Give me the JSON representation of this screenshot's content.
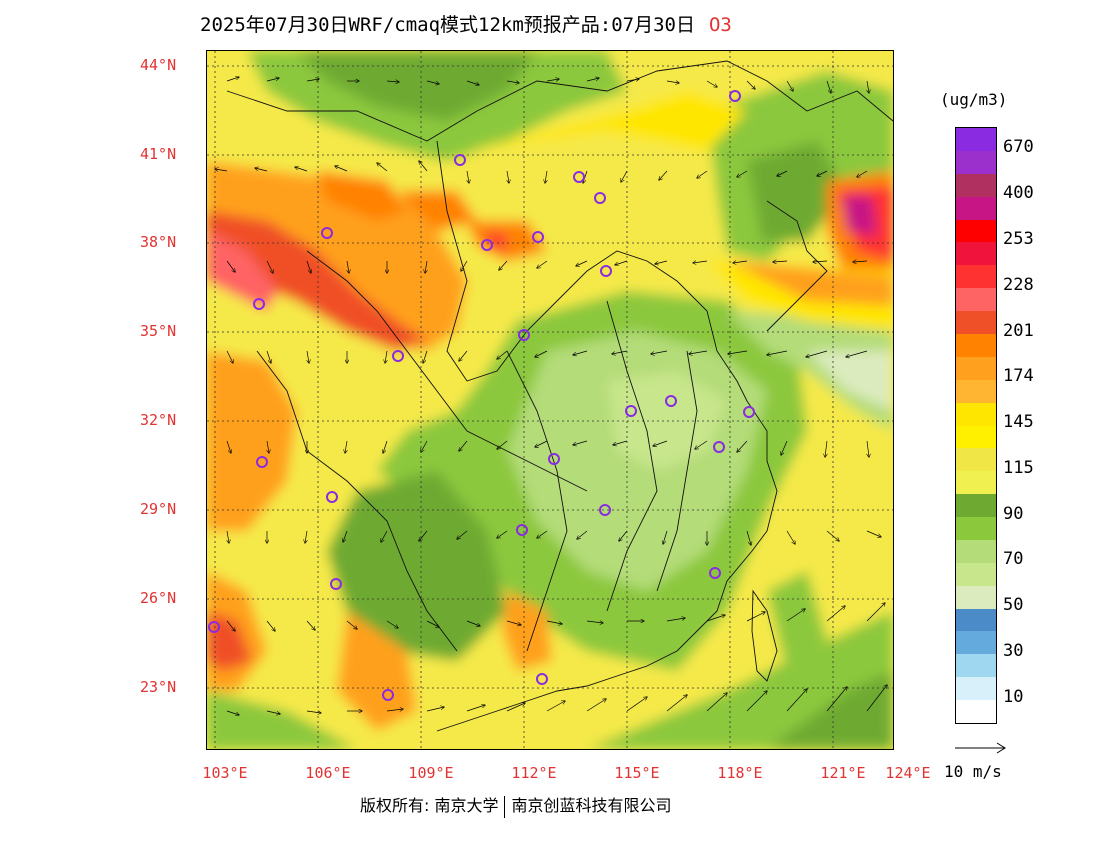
{
  "title": "2025年07月30日WRF/cmaq模式12km预报产品:07月30日",
  "pollutant": "O3",
  "unit": "(ug/m3)",
  "latitude_labels": [
    "44°N",
    "41°N",
    "38°N",
    "35°N",
    "32°N",
    "29°N",
    "26°N",
    "23°N"
  ],
  "longitude_labels": [
    "103°E",
    "106°E",
    "109°E",
    "112°E",
    "115°E",
    "118°E",
    "121°E",
    "124°E"
  ],
  "legend": {
    "levels": [
      {
        "label": "670",
        "color": "#8a2be2"
      },
      {
        "label": "",
        "color": "#9b30cc"
      },
      {
        "label": "400",
        "color": "#b03060"
      },
      {
        "label": "",
        "color": "#c71585"
      },
      {
        "label": "253",
        "color": "#ff0000"
      },
      {
        "label": "",
        "color": "#f0143c"
      },
      {
        "label": "228",
        "color": "#ff3232"
      },
      {
        "label": "",
        "color": "#ff6464"
      },
      {
        "label": "201",
        "color": "#f05028"
      },
      {
        "label": "",
        "color": "#ff8200"
      },
      {
        "label": "174",
        "color": "#ffa01e"
      },
      {
        "label": "",
        "color": "#ffb432"
      },
      {
        "label": "145",
        "color": "#ffe600"
      },
      {
        "label": "",
        "color": "#fff000"
      },
      {
        "label": "115",
        "color": "#f0e646"
      },
      {
        "label": "",
        "color": "#f0f050"
      },
      {
        "label": "90",
        "color": "#6eaa32"
      },
      {
        "label": "",
        "color": "#8cc83c"
      },
      {
        "label": "70",
        "color": "#b4dc78"
      },
      {
        "label": "",
        "color": "#c8e68c"
      },
      {
        "label": "50",
        "color": "#dcebbe"
      },
      {
        "label": "",
        "color": "#4b8cc8"
      },
      {
        "label": "30",
        "color": "#64aadc"
      },
      {
        "label": "",
        "color": "#a0d7f0"
      },
      {
        "label": "10",
        "color": "#d7f0fa"
      },
      {
        "label": "",
        "color": "#ffffff"
      }
    ]
  },
  "wind_vector_label": "10 m/s",
  "copyright": {
    "left": "版权所有: 南京大学",
    "right": "南京创蓝科技有限公司"
  },
  "colors": {
    "label_red": "#e23232",
    "station_marker": "#8a2be2"
  }
}
